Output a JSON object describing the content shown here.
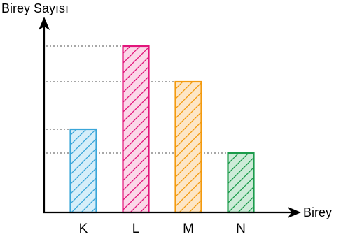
{
  "chart_data": {
    "type": "bar",
    "ylabel": "Birey Sayısı",
    "xlabel": "Birey",
    "categories": [
      "K",
      "L",
      "M",
      "N"
    ],
    "values": [
      3.5,
      7,
      5.5,
      2.5
    ],
    "colors": [
      {
        "stroke": "#3aa6d9",
        "fill": "#d6eef9"
      },
      {
        "stroke": "#e2157b",
        "fill": "#fbd8e8"
      },
      {
        "stroke": "#f39a0e",
        "fill": "#fde6c6"
      },
      {
        "stroke": "#1b9b4b",
        "fill": "#cdebd8"
      }
    ],
    "hatch": "diagonal",
    "reference_lines": "dotted",
    "y_ticks_labeled": false
  }
}
